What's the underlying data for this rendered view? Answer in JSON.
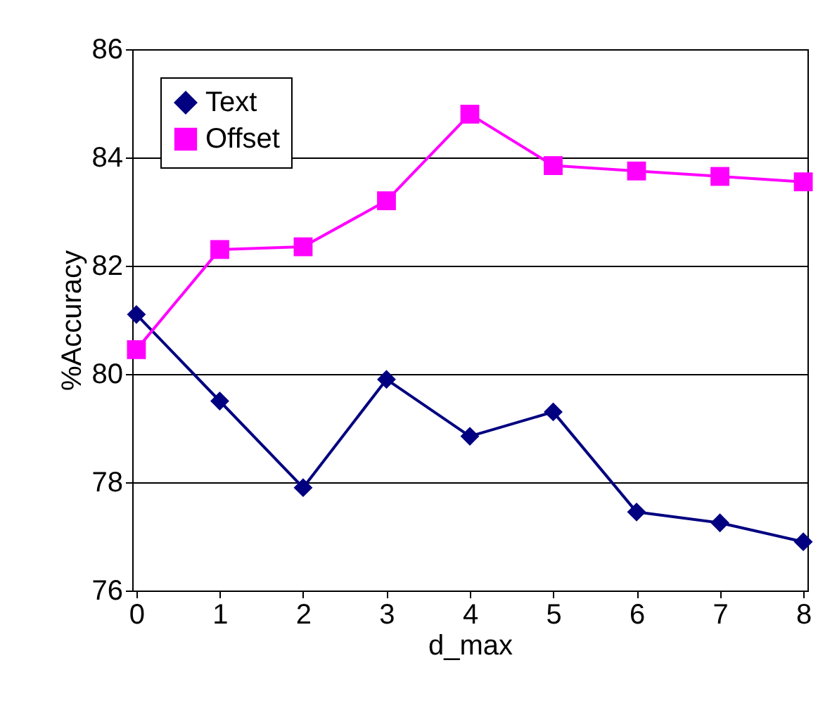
{
  "chart_data": {
    "type": "line",
    "xlabel": "d_max",
    "ylabel": "%Accuracy",
    "categories": [
      "0",
      "1",
      "2",
      "3",
      "4",
      "5",
      "6",
      "7",
      "8"
    ],
    "series": [
      {
        "name": "Text",
        "color": "#000080",
        "marker": "diamond",
        "values": [
          81.1,
          79.5,
          77.9,
          79.9,
          78.85,
          79.3,
          77.45,
          77.25,
          76.9
        ]
      },
      {
        "name": "Offset",
        "color": "#ff00ff",
        "marker": "square",
        "values": [
          80.45,
          82.3,
          82.35,
          83.2,
          84.8,
          83.85,
          83.75,
          83.65,
          83.55
        ]
      }
    ],
    "ylim": [
      76,
      86
    ],
    "yticks": [
      76,
      78,
      80,
      82,
      84,
      86
    ],
    "grid": "y",
    "legend": "top left",
    "line_style": "solid"
  }
}
